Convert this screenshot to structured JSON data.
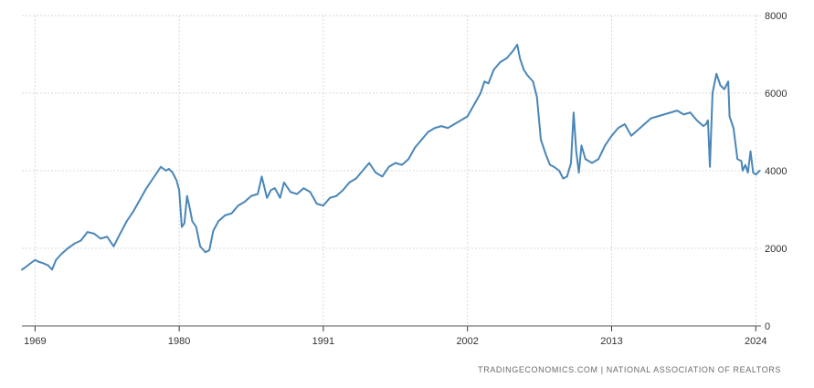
{
  "source": "TRADINGECONOMICS.COM | NATIONAL ASSOCIATION OF REALTORS",
  "colors": {
    "line": "#4a86b8",
    "grid": "#d9d9d9",
    "axis": "#333333"
  },
  "chart_data": {
    "type": "line",
    "title": "",
    "xlabel": "",
    "ylabel": "",
    "xlim": [
      1968,
      2024.4
    ],
    "ylim": [
      0,
      8000
    ],
    "x_ticks": [
      1969,
      1980,
      1991,
      2002,
      2013,
      2024
    ],
    "x_tick_labels": [
      "1969",
      "1980",
      "1991",
      "2002",
      "2013",
      "2024"
    ],
    "y_ticks": [
      0,
      2000,
      4000,
      6000,
      8000
    ],
    "y_tick_labels": [
      "0",
      "2000",
      "4000",
      "6000",
      "8000"
    ],
    "grid": true,
    "legend": "none",
    "series": [
      {
        "x": [
          1968.0,
          1968.3,
          1968.6,
          1969.0,
          1969.3,
          1969.6,
          1970.0,
          1970.3,
          1970.6,
          1971.0,
          1971.5,
          1972.0,
          1972.5,
          1973.0,
          1973.5,
          1974.0,
          1974.5,
          1975.0,
          1975.5,
          1976.0,
          1976.5,
          1977.0,
          1977.5,
          1978.0,
          1978.3,
          1978.6,
          1979.0,
          1979.2,
          1979.5,
          1979.8,
          1980.0,
          1980.2,
          1980.4,
          1980.6,
          1980.8,
          1981.0,
          1981.3,
          1981.6,
          1982.0,
          1982.3,
          1982.6,
          1983.0,
          1983.5,
          1984.0,
          1984.5,
          1985.0,
          1985.5,
          1986.0,
          1986.3,
          1986.7,
          1987.0,
          1987.3,
          1987.7,
          1988.0,
          1988.5,
          1989.0,
          1989.5,
          1990.0,
          1990.5,
          1991.0,
          1991.5,
          1992.0,
          1992.5,
          1993.0,
          1993.5,
          1994.0,
          1994.5,
          1995.0,
          1995.5,
          1996.0,
          1996.5,
          1997.0,
          1997.5,
          1998.0,
          1998.5,
          1999.0,
          1999.5,
          2000.0,
          2000.5,
          2001.0,
          2001.5,
          2002.0,
          2002.5,
          2003.0,
          2003.3,
          2003.6,
          2004.0,
          2004.5,
          2005.0,
          2005.5,
          2005.8,
          2006.0,
          2006.3,
          2006.6,
          2007.0,
          2007.3,
          2007.6,
          2008.0,
          2008.3,
          2008.6,
          2009.0,
          2009.3,
          2009.6,
          2009.9,
          2010.1,
          2010.3,
          2010.5,
          2010.7,
          2011.0,
          2011.5,
          2012.0,
          2012.5,
          2013.0,
          2013.5,
          2014.0,
          2014.5,
          2015.0,
          2015.5,
          2016.0,
          2016.5,
          2017.0,
          2017.5,
          2018.0,
          2018.5,
          2019.0,
          2019.5,
          2020.0,
          2020.2,
          2020.35,
          2020.5,
          2020.7,
          2021.0,
          2021.3,
          2021.6,
          2021.9,
          2022.0,
          2022.3,
          2022.6,
          2022.9,
          2023.0,
          2023.2,
          2023.4,
          2023.6,
          2023.8,
          2024.0,
          2024.3
        ],
        "y": [
          1450,
          1520,
          1600,
          1700,
          1650,
          1620,
          1560,
          1450,
          1700,
          1850,
          2000,
          2120,
          2200,
          2420,
          2380,
          2250,
          2300,
          2050,
          2380,
          2700,
          2950,
          3250,
          3550,
          3800,
          3950,
          4100,
          4000,
          4050,
          3950,
          3750,
          3500,
          2550,
          2650,
          3350,
          3050,
          2700,
          2550,
          2050,
          1900,
          1950,
          2450,
          2700,
          2850,
          2900,
          3100,
          3200,
          3350,
          3400,
          3850,
          3300,
          3500,
          3550,
          3300,
          3700,
          3450,
          3400,
          3550,
          3450,
          3150,
          3100,
          3300,
          3350,
          3500,
          3700,
          3800,
          4000,
          4200,
          3950,
          3850,
          4100,
          4200,
          4150,
          4300,
          4600,
          4800,
          5000,
          5100,
          5150,
          5100,
          5200,
          5300,
          5400,
          5700,
          6000,
          6300,
          6250,
          6600,
          6800,
          6900,
          7100,
          7250,
          6900,
          6600,
          6450,
          6300,
          5900,
          4800,
          4400,
          4150,
          4100,
          4000,
          3800,
          3850,
          4200,
          5500,
          4500,
          3950,
          4650,
          4300,
          4200,
          4300,
          4650,
          4900,
          5100,
          5200,
          4900,
          5050,
          5200,
          5350,
          5400,
          5450,
          5500,
          5550,
          5450,
          5500,
          5300,
          5150,
          5200,
          5300,
          4100,
          6000,
          6500,
          6200,
          6100,
          6300,
          5400,
          5100,
          4300,
          4250,
          4000,
          4150,
          3950,
          4500,
          3950,
          3900,
          4000
        ]
      }
    ]
  }
}
